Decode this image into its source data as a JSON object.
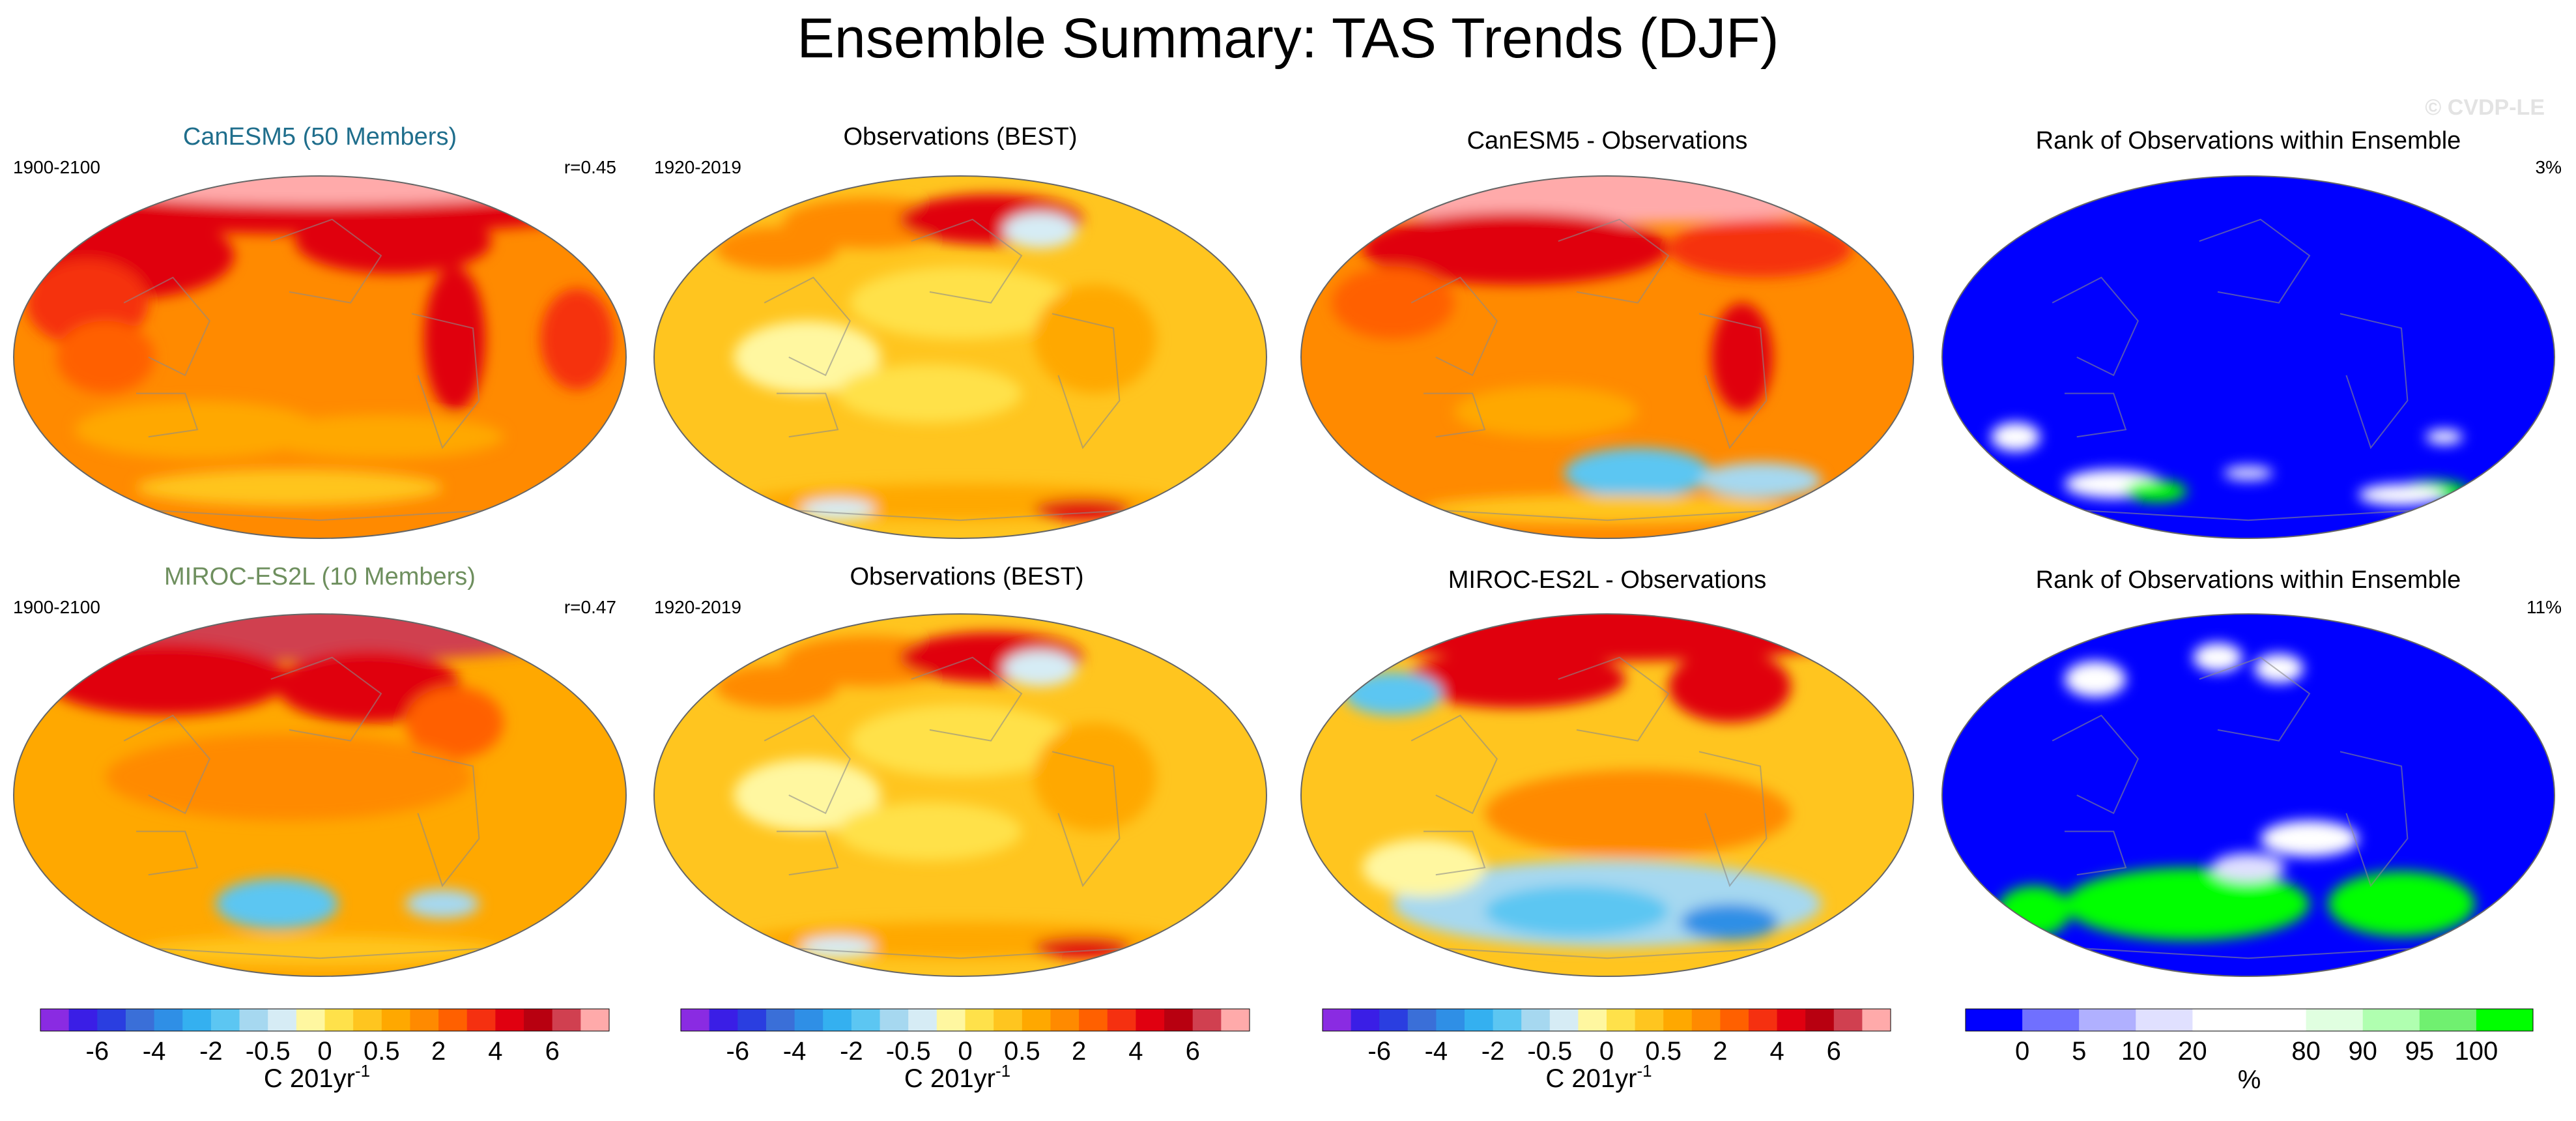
{
  "title": "Ensemble Summary: TAS Trends (DJF)",
  "watermark": "© CVDP-LE",
  "colors": {
    "ocean_base": "#ffb000",
    "land_outline": "#8a8a8a",
    "canesm_title": "#1f6e8c",
    "miroc_title": "#6e8f5e",
    "rank_blue": "#0000ff"
  },
  "chart_data": [
    {
      "type": "heatmap",
      "projection": "Robinson global map",
      "title": "CanESM5 (50 Members)",
      "left_label": "1900-2100",
      "right_label": "r=0.45",
      "pattern": "canesm_mean"
    },
    {
      "type": "heatmap",
      "projection": "Robinson global map",
      "title": "Observations (BEST)",
      "left_label": "1920-2019",
      "right_label": "",
      "pattern": "obs"
    },
    {
      "type": "heatmap",
      "projection": "Robinson global map",
      "title": "CanESM5 - Observations",
      "left_label": "",
      "right_label": "",
      "pattern": "canesm_diff"
    },
    {
      "type": "heatmap",
      "projection": "Robinson global map",
      "title": "Rank of Observations within Ensemble",
      "left_label": "",
      "right_label": "3%",
      "pattern": "rank_canesm"
    },
    {
      "type": "heatmap",
      "projection": "Robinson global map",
      "title": "MIROC-ES2L (10 Members)",
      "left_label": "1900-2100",
      "right_label": "r=0.47",
      "pattern": "miroc_mean"
    },
    {
      "type": "heatmap",
      "projection": "Robinson global map",
      "title": "Observations (BEST)",
      "left_label": "1920-2019",
      "right_label": "",
      "pattern": "obs"
    },
    {
      "type": "heatmap",
      "projection": "Robinson global map",
      "title": "MIROC-ES2L - Observations",
      "left_label": "",
      "right_label": "",
      "pattern": "miroc_diff"
    },
    {
      "type": "heatmap",
      "projection": "Robinson global map",
      "title": "Rank of Observations within Ensemble",
      "left_label": "",
      "right_label": "11%",
      "pattern": "rank_miroc"
    }
  ],
  "colorbars": {
    "trend": {
      "colors": [
        "#8a2be2",
        "#3a1ee6",
        "#2a3ee0",
        "#3a6fd8",
        "#2f8fe6",
        "#34b0f0",
        "#5cc6f2",
        "#a6d8f0",
        "#d6ecf5",
        "#fff7a0",
        "#ffe14a",
        "#ffc51f",
        "#ffa800",
        "#ff8a00",
        "#ff6000",
        "#f53010",
        "#e00010",
        "#b80010",
        "#d04050",
        "#ffaaaa"
      ],
      "tick_labels": [
        "-6",
        "-4",
        "-2",
        "-0.5",
        "0",
        "0.5",
        "2",
        "4",
        "6"
      ],
      "tick_positions": [
        2,
        4,
        6,
        8,
        10,
        12,
        14,
        16,
        18
      ],
      "units_base": "C 201yr",
      "units_exp": "-1"
    },
    "rank": {
      "colors": [
        "#0000ff",
        "#7070ff",
        "#b0b0ff",
        "#e0e0ff",
        "#ffffff",
        "#ffffff",
        "#e0ffe0",
        "#b0ffb0",
        "#70f070",
        "#00ff00"
      ],
      "tick_labels": [
        "0",
        "5",
        "10",
        "20",
        "80",
        "90",
        "95",
        "100"
      ],
      "tick_positions": [
        1,
        2,
        3,
        4,
        6,
        7,
        8,
        9
      ],
      "units": "%"
    }
  }
}
